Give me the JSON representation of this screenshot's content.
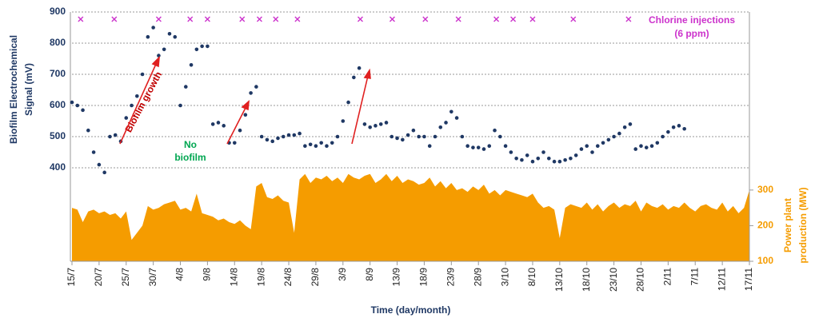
{
  "chart_data": {
    "type": "scatter",
    "xlabel": "Time (day/month)",
    "ylabel": [
      "Biofilm Electrochemical",
      "Signal (mV)"
    ],
    "y2label": [
      "Power plant",
      "production (MW)"
    ],
    "xlim": [
      0,
      125
    ],
    "ylim": [
      100,
      900
    ],
    "y2lim": [
      100,
      800
    ],
    "yticks": [
      400,
      500,
      600,
      700,
      800,
      900
    ],
    "y2ticks": [
      100,
      200,
      300
    ],
    "xticks": [
      {
        "value": 0,
        "label": "15/7"
      },
      {
        "value": 5,
        "label": "20/7"
      },
      {
        "value": 10,
        "label": "25/7"
      },
      {
        "value": 15,
        "label": "30/7"
      },
      {
        "value": 20,
        "label": "4/8"
      },
      {
        "value": 25,
        "label": "9/8"
      },
      {
        "value": 30,
        "label": "14/8"
      },
      {
        "value": 35,
        "label": "19/8"
      },
      {
        "value": 40,
        "label": "24/8"
      },
      {
        "value": 45,
        "label": "29/8"
      },
      {
        "value": 50,
        "label": "3/9"
      },
      {
        "value": 55,
        "label": "8/9"
      },
      {
        "value": 60,
        "label": "13/9"
      },
      {
        "value": 65,
        "label": "18/9"
      },
      {
        "value": 70,
        "label": "23/9"
      },
      {
        "value": 75,
        "label": "28/9"
      },
      {
        "value": 80,
        "label": "3/10"
      },
      {
        "value": 85,
        "label": "8/10"
      },
      {
        "value": 90,
        "label": "13/10"
      },
      {
        "value": 95,
        "label": "18/10"
      },
      {
        "value": 100,
        "label": "23/10"
      },
      {
        "value": 105,
        "label": "28/10"
      },
      {
        "value": 110,
        "label": "2/11"
      },
      {
        "value": 115,
        "label": "7/11"
      },
      {
        "value": 120,
        "label": "12/11"
      },
      {
        "value": 125,
        "label": "17/11"
      }
    ],
    "grid": true,
    "signal": {
      "color": "#1f3864",
      "x": [
        0,
        1,
        2,
        3,
        4,
        5,
        6,
        7,
        8,
        9,
        10,
        11,
        12,
        13,
        14,
        15,
        16,
        17,
        18,
        19,
        20,
        21,
        22,
        23,
        24,
        25,
        26,
        27,
        28,
        29,
        30,
        31,
        32,
        33,
        34,
        35,
        36,
        37,
        38,
        39,
        40,
        41,
        42,
        43,
        44,
        45,
        46,
        47,
        48,
        49,
        50,
        51,
        52,
        53,
        54,
        55,
        56,
        57,
        58,
        59,
        60,
        61,
        62,
        63,
        64,
        65,
        66,
        67,
        68,
        69,
        70,
        71,
        72,
        73,
        74,
        75,
        76,
        77,
        78,
        79,
        80,
        81,
        82,
        83,
        84,
        85,
        86,
        87,
        88,
        89,
        90,
        91,
        92,
        93,
        94,
        95,
        96,
        97,
        98,
        99,
        100,
        101,
        102,
        103,
        104,
        105,
        106,
        107,
        108,
        109,
        110,
        111,
        112,
        113
      ],
      "values": [
        610,
        600,
        585,
        520,
        450,
        410,
        385,
        500,
        505,
        485,
        560,
        600,
        630,
        700,
        820,
        850,
        760,
        780,
        830,
        820,
        600,
        660,
        730,
        780,
        790,
        790,
        540,
        545,
        535,
        480,
        480,
        520,
        570,
        640,
        660,
        500,
        490,
        485,
        495,
        500,
        505,
        505,
        510,
        470,
        475,
        470,
        480,
        470,
        480,
        500,
        550,
        610,
        690,
        720,
        540,
        530,
        535,
        540,
        545,
        500,
        495,
        490,
        505,
        520,
        500,
        500,
        470,
        500,
        530,
        545,
        580,
        560,
        500,
        470,
        465,
        465,
        460,
        470,
        520,
        500,
        470,
        450,
        430,
        425,
        440,
        420,
        430,
        450,
        430,
        420,
        420,
        425,
        430,
        440,
        460,
        470,
        450,
        470,
        480,
        490,
        500,
        510,
        530,
        540,
        460,
        470,
        465,
        470,
        480,
        500,
        515,
        530,
        535,
        525
      ]
    },
    "power": {
      "color": "#f59c00",
      "axis": "y2",
      "x": [
        0,
        1,
        2,
        3,
        4,
        5,
        6,
        7,
        8,
        9,
        10,
        11,
        12,
        13,
        14,
        15,
        16,
        17,
        18,
        19,
        20,
        21,
        22,
        23,
        24,
        25,
        26,
        27,
        28,
        29,
        30,
        31,
        32,
        33,
        34,
        35,
        36,
        37,
        38,
        39,
        40,
        41,
        42,
        43,
        44,
        45,
        46,
        47,
        48,
        49,
        50,
        51,
        52,
        53,
        54,
        55,
        56,
        57,
        58,
        59,
        60,
        61,
        62,
        63,
        64,
        65,
        66,
        67,
        68,
        69,
        70,
        71,
        72,
        73,
        74,
        75,
        76,
        77,
        78,
        79,
        80,
        81,
        82,
        83,
        84,
        85,
        86,
        87,
        88,
        89,
        90,
        91,
        92,
        93,
        94,
        95,
        96,
        97,
        98,
        99,
        100,
        101,
        102,
        103,
        104,
        105,
        106,
        107,
        108,
        109,
        110,
        111,
        112,
        113,
        114,
        115,
        116,
        117,
        118,
        119,
        120,
        121,
        122,
        123,
        124,
        125
      ],
      "values": [
        250,
        245,
        210,
        240,
        245,
        235,
        240,
        230,
        235,
        220,
        240,
        160,
        180,
        200,
        255,
        245,
        250,
        260,
        265,
        270,
        245,
        250,
        240,
        290,
        235,
        230,
        225,
        215,
        220,
        210,
        205,
        215,
        200,
        190,
        310,
        320,
        280,
        275,
        285,
        270,
        265,
        180,
        330,
        345,
        320,
        335,
        330,
        340,
        325,
        335,
        320,
        345,
        335,
        330,
        340,
        345,
        320,
        330,
        345,
        325,
        340,
        320,
        330,
        325,
        315,
        320,
        335,
        310,
        325,
        305,
        320,
        300,
        305,
        295,
        310,
        300,
        315,
        290,
        300,
        285,
        300,
        295,
        290,
        285,
        280,
        290,
        265,
        250,
        255,
        245,
        165,
        250,
        260,
        255,
        250,
        265,
        245,
        260,
        240,
        255,
        265,
        250,
        260,
        255,
        270,
        240,
        265,
        255,
        250,
        260,
        245,
        255,
        250,
        265,
        250,
        240,
        255,
        260,
        250,
        245,
        265,
        240,
        255,
        235,
        250,
        300
      ]
    },
    "injections": {
      "name": [
        "Chlorine injections",
        "(6 ppm)"
      ],
      "color": "#cc33cc",
      "x": [
        1.6,
        7.8,
        16,
        21.8,
        25,
        31.4,
        34.6,
        37.6,
        41.6,
        53.2,
        59.1,
        65.2,
        71.3,
        78.3,
        81.4,
        85,
        92.5,
        102.7
      ]
    },
    "annotations": [
      {
        "text": "Biofilm growth",
        "color": "#c00000"
      },
      {
        "text": [
          "No",
          "biofilm"
        ],
        "color": "#00a651"
      }
    ]
  }
}
